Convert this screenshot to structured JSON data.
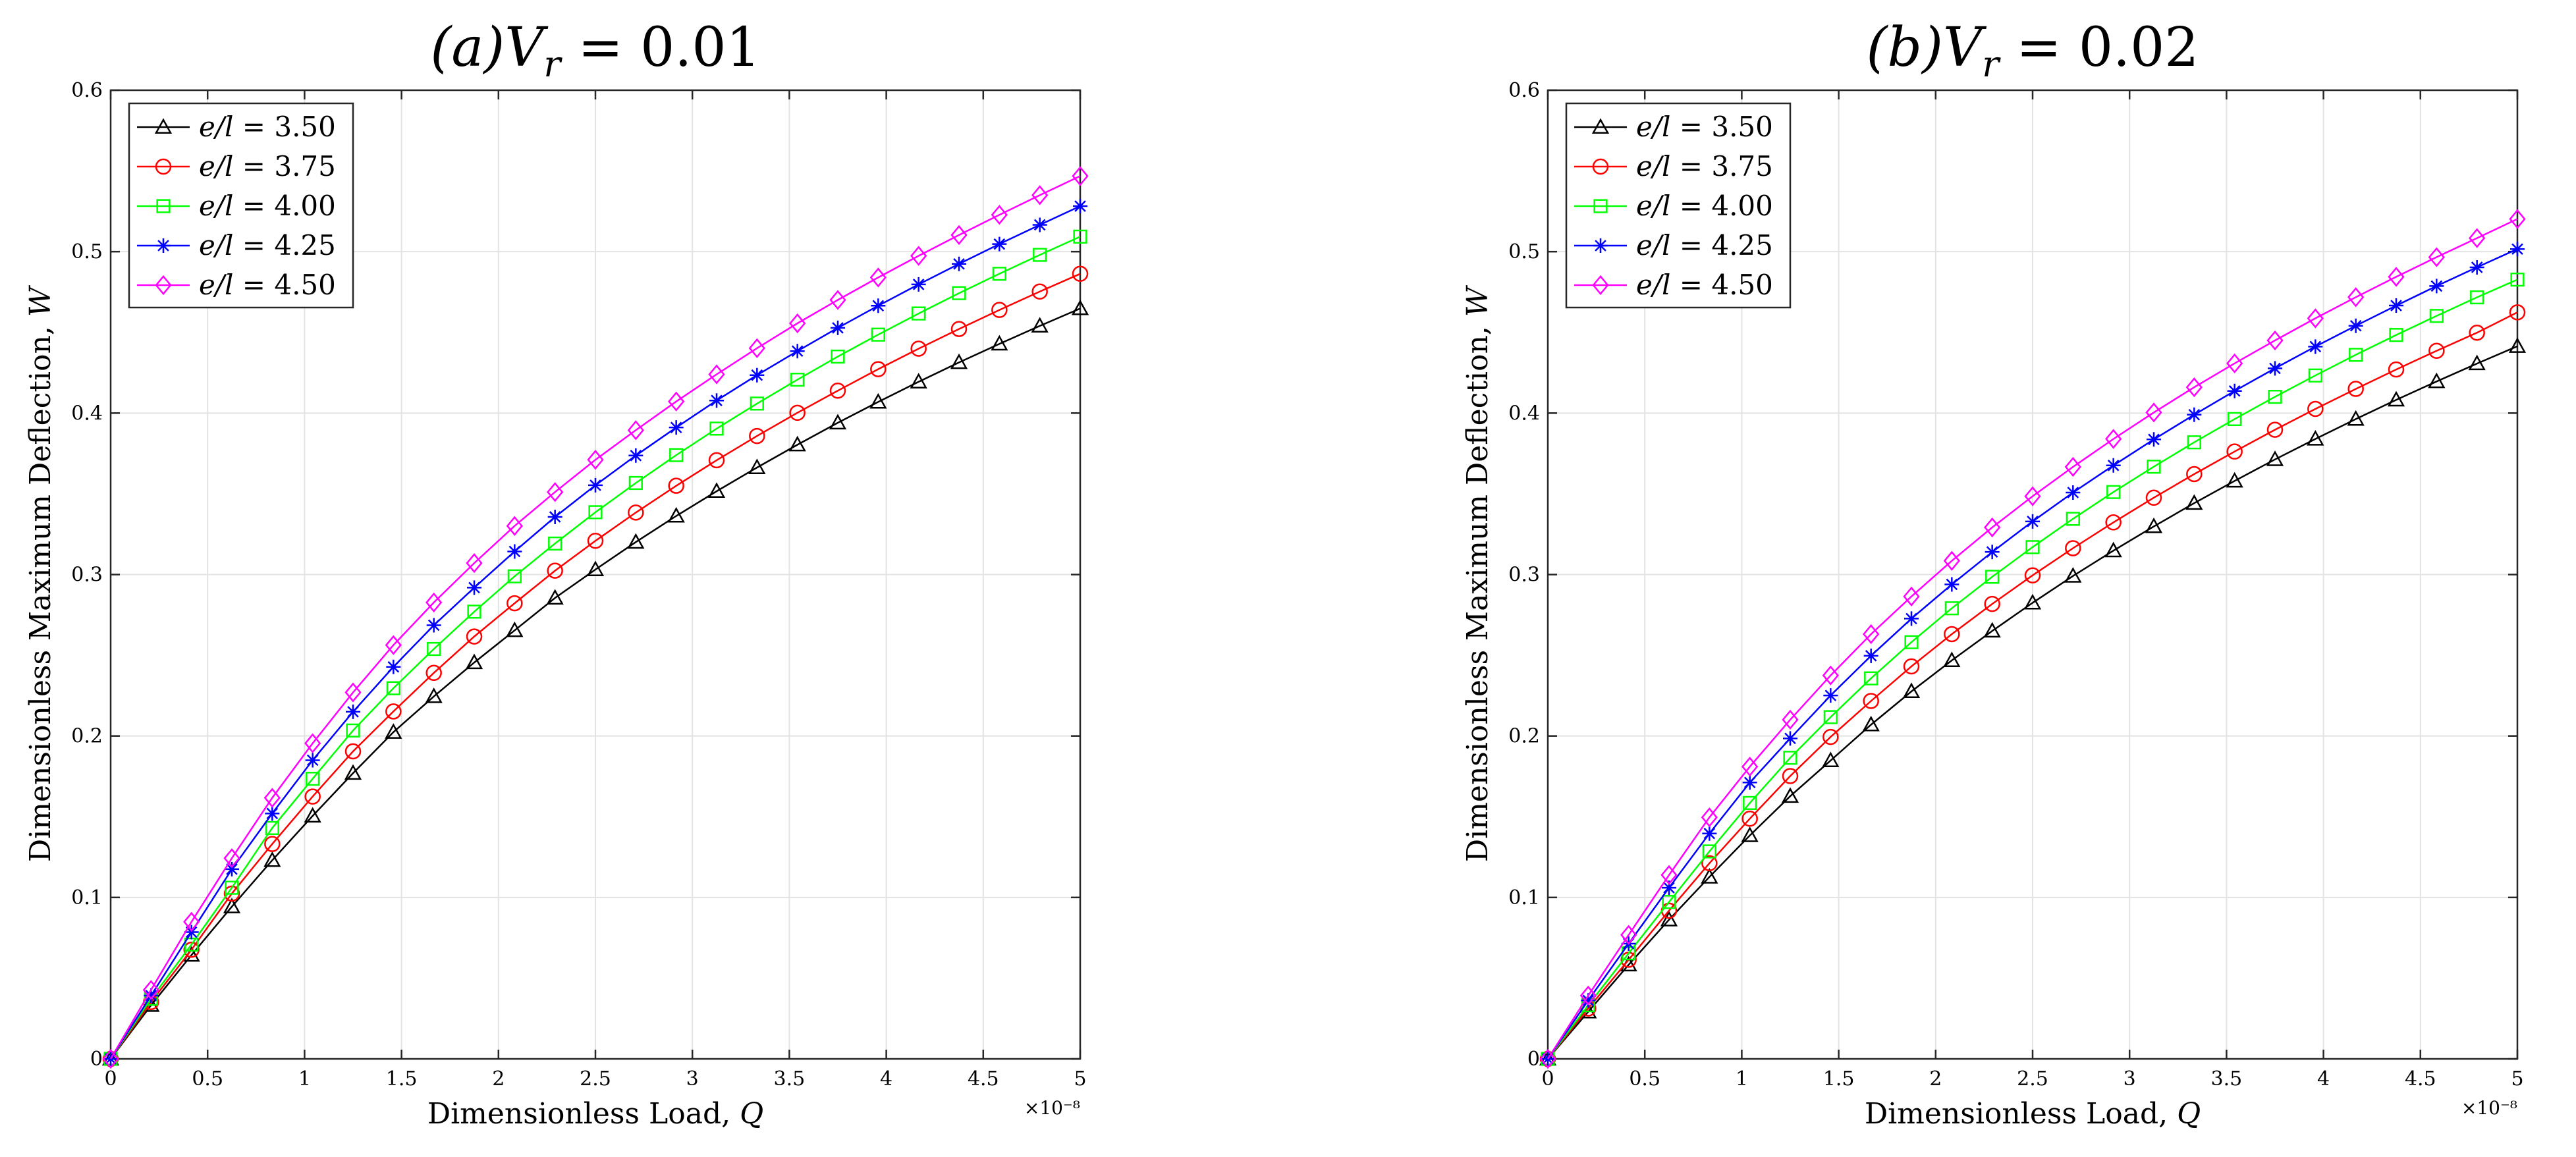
{
  "chart_data": [
    {
      "type": "line",
      "title": {
        "label": "(a)",
        "var": "V",
        "sub": "r",
        "rest": " = 0.01"
      },
      "xlabel": {
        "text": "Dimensionless Load, ",
        "var": "Q"
      },
      "ylabel": {
        "text": "Dimensionless Maximum Deflection, ",
        "var": "W"
      },
      "xlim": [
        0,
        5
      ],
      "ylim": [
        0,
        0.6
      ],
      "x_exponent": "×10⁻⁸",
      "xticks": [
        "0",
        "0.5",
        "1",
        "1.5",
        "2",
        "2.5",
        "3",
        "3.5",
        "4",
        "4.5",
        "5"
      ],
      "yticks": [
        "0",
        "0.1",
        "0.2",
        "0.3",
        "0.4",
        "0.5",
        "0.6"
      ],
      "x": [
        0,
        0.2083,
        0.4167,
        0.625,
        0.8333,
        1.0417,
        1.25,
        1.4583,
        1.6667,
        1.875,
        2.0833,
        2.2917,
        2.5,
        2.7083,
        2.9167,
        3.125,
        3.3333,
        3.5417,
        3.75,
        3.9583,
        4.1667,
        4.375,
        4.5833,
        4.7917,
        5.0
      ],
      "series": [
        {
          "name": "e/l = 3.50",
          "var": "e/l",
          "value": "3.50",
          "color": "#000000",
          "marker": "triangle",
          "values": [
            0,
            0.0332,
            0.0643,
            0.0943,
            0.123,
            0.1505,
            0.177,
            0.2024,
            0.2245,
            0.2455,
            0.2654,
            0.2855,
            0.3031,
            0.3201,
            0.3363,
            0.3516,
            0.3663,
            0.3804,
            0.394,
            0.4069,
            0.4194,
            0.4314,
            0.4429,
            0.454,
            0.4648
          ]
        },
        {
          "name": "e/l = 3.75",
          "var": "e/l",
          "value": "3.75",
          "color": "#ff0000",
          "marker": "circle",
          "values": [
            0,
            0.0352,
            0.0676,
            0.1024,
            0.1331,
            0.1625,
            0.1905,
            0.2152,
            0.2391,
            0.2616,
            0.2822,
            0.3024,
            0.3209,
            0.3384,
            0.355,
            0.3708,
            0.3858,
            0.4002,
            0.4139,
            0.4272,
            0.4399,
            0.4521,
            0.4639,
            0.4753,
            0.4863
          ]
        },
        {
          "name": "e/l = 4.00",
          "var": "e/l",
          "value": "4.00",
          "color": "#00ff00",
          "marker": "square",
          "values": [
            0,
            0.0372,
            0.0708,
            0.106,
            0.143,
            0.1735,
            0.2034,
            0.2296,
            0.2539,
            0.277,
            0.2989,
            0.3192,
            0.3386,
            0.3567,
            0.374,
            0.3904,
            0.4059,
            0.4207,
            0.435,
            0.4486,
            0.4617,
            0.4743,
            0.4863,
            0.498,
            0.5093
          ]
        },
        {
          "name": "e/l = 4.25",
          "var": "e/l",
          "value": "4.25",
          "color": "#0000ff",
          "marker": "star",
          "values": [
            0,
            0.0392,
            0.0785,
            0.1175,
            0.152,
            0.185,
            0.215,
            0.2428,
            0.2686,
            0.2919,
            0.3143,
            0.3357,
            0.3553,
            0.3737,
            0.3911,
            0.4078,
            0.4235,
            0.4384,
            0.4528,
            0.4665,
            0.4797,
            0.4924,
            0.5047,
            0.5166,
            0.5282
          ]
        },
        {
          "name": "e/l = 4.50",
          "var": "e/l",
          "value": "4.50",
          "color": "#ff00ff",
          "marker": "diamond",
          "values": [
            0,
            0.0427,
            0.0849,
            0.1243,
            0.1617,
            0.1955,
            0.227,
            0.2563,
            0.2827,
            0.3071,
            0.3301,
            0.3511,
            0.3711,
            0.3894,
            0.4072,
            0.424,
            0.4402,
            0.4556,
            0.4701,
            0.484,
            0.4974,
            0.5103,
            0.5228,
            0.535,
            0.5468
          ]
        }
      ],
      "legend": "top-left"
    },
    {
      "type": "line",
      "title": {
        "label": "(b)",
        "var": "V",
        "sub": "r",
        "rest": " = 0.02"
      },
      "xlabel": {
        "text": "Dimensionless Load, ",
        "var": "Q"
      },
      "ylabel": {
        "text": "Dimensionless Maximum Deflection, ",
        "var": "W"
      },
      "xlim": [
        0,
        5
      ],
      "ylim": [
        0,
        0.6
      ],
      "x_exponent": "×10⁻⁸",
      "xticks": [
        "0",
        "0.5",
        "1",
        "1.5",
        "2",
        "2.5",
        "3",
        "3.5",
        "4",
        "4.5",
        "5"
      ],
      "yticks": [
        "0",
        "0.1",
        "0.2",
        "0.3",
        "0.4",
        "0.5",
        "0.6"
      ],
      "x": [
        0,
        0.2083,
        0.4167,
        0.625,
        0.8333,
        1.0417,
        1.25,
        1.4583,
        1.6667,
        1.875,
        2.0833,
        2.2917,
        2.5,
        2.7083,
        2.9167,
        3.125,
        3.3333,
        3.5417,
        3.75,
        3.9583,
        4.1667,
        4.375,
        4.5833,
        4.7917,
        5.0
      ],
      "series": [
        {
          "name": "e/l = 3.50",
          "var": "e/l",
          "value": "3.50",
          "color": "#000000",
          "marker": "triangle",
          "values": [
            0,
            0.0292,
            0.0583,
            0.0862,
            0.1127,
            0.1384,
            0.1627,
            0.1848,
            0.207,
            0.2276,
            0.2468,
            0.2651,
            0.2825,
            0.2991,
            0.3148,
            0.3298,
            0.3442,
            0.358,
            0.3713,
            0.384,
            0.3963,
            0.4082,
            0.4196,
            0.4307,
            0.4414
          ]
        },
        {
          "name": "e/l = 3.75",
          "var": "e/l",
          "value": "3.75",
          "color": "#ff0000",
          "marker": "circle",
          "values": [
            0,
            0.0312,
            0.0614,
            0.0918,
            0.1212,
            0.1488,
            0.1752,
            0.1994,
            0.2217,
            0.2431,
            0.2631,
            0.2818,
            0.2995,
            0.3163,
            0.3323,
            0.3476,
            0.3622,
            0.3762,
            0.3897,
            0.4026,
            0.415,
            0.427,
            0.4386,
            0.4498,
            0.4624
          ]
        },
        {
          "name": "e/l = 4.00",
          "var": "e/l",
          "value": "4.00",
          "color": "#00ff00",
          "marker": "square",
          "values": [
            0,
            0.0332,
            0.0654,
            0.0972,
            0.1285,
            0.1585,
            0.1865,
            0.2117,
            0.2357,
            0.2581,
            0.2791,
            0.2986,
            0.317,
            0.3345,
            0.3511,
            0.3668,
            0.3819,
            0.3963,
            0.4101,
            0.4233,
            0.4361,
            0.4484,
            0.4602,
            0.4717,
            0.4827
          ]
        },
        {
          "name": "e/l = 4.25",
          "var": "e/l",
          "value": "4.25",
          "color": "#0000ff",
          "marker": "star",
          "values": [
            0,
            0.0362,
            0.0714,
            0.106,
            0.1396,
            0.1712,
            0.1985,
            0.2251,
            0.2497,
            0.2727,
            0.2939,
            0.314,
            0.3329,
            0.3508,
            0.3676,
            0.3837,
            0.399,
            0.4137,
            0.4277,
            0.4412,
            0.4541,
            0.4666,
            0.4787,
            0.4903,
            0.5016
          ]
        },
        {
          "name": "e/l = 4.50",
          "var": "e/l",
          "value": "4.50",
          "color": "#ff00ff",
          "marker": "diamond",
          "values": [
            0,
            0.0392,
            0.0768,
            0.1139,
            0.1496,
            0.181,
            0.2101,
            0.2375,
            0.2631,
            0.2864,
            0.3085,
            0.3292,
            0.3485,
            0.3667,
            0.384,
            0.4004,
            0.416,
            0.4308,
            0.445,
            0.4587,
            0.4718,
            0.4844,
            0.4966,
            0.5084,
            0.5202
          ]
        }
      ],
      "legend": "top-left"
    }
  ]
}
